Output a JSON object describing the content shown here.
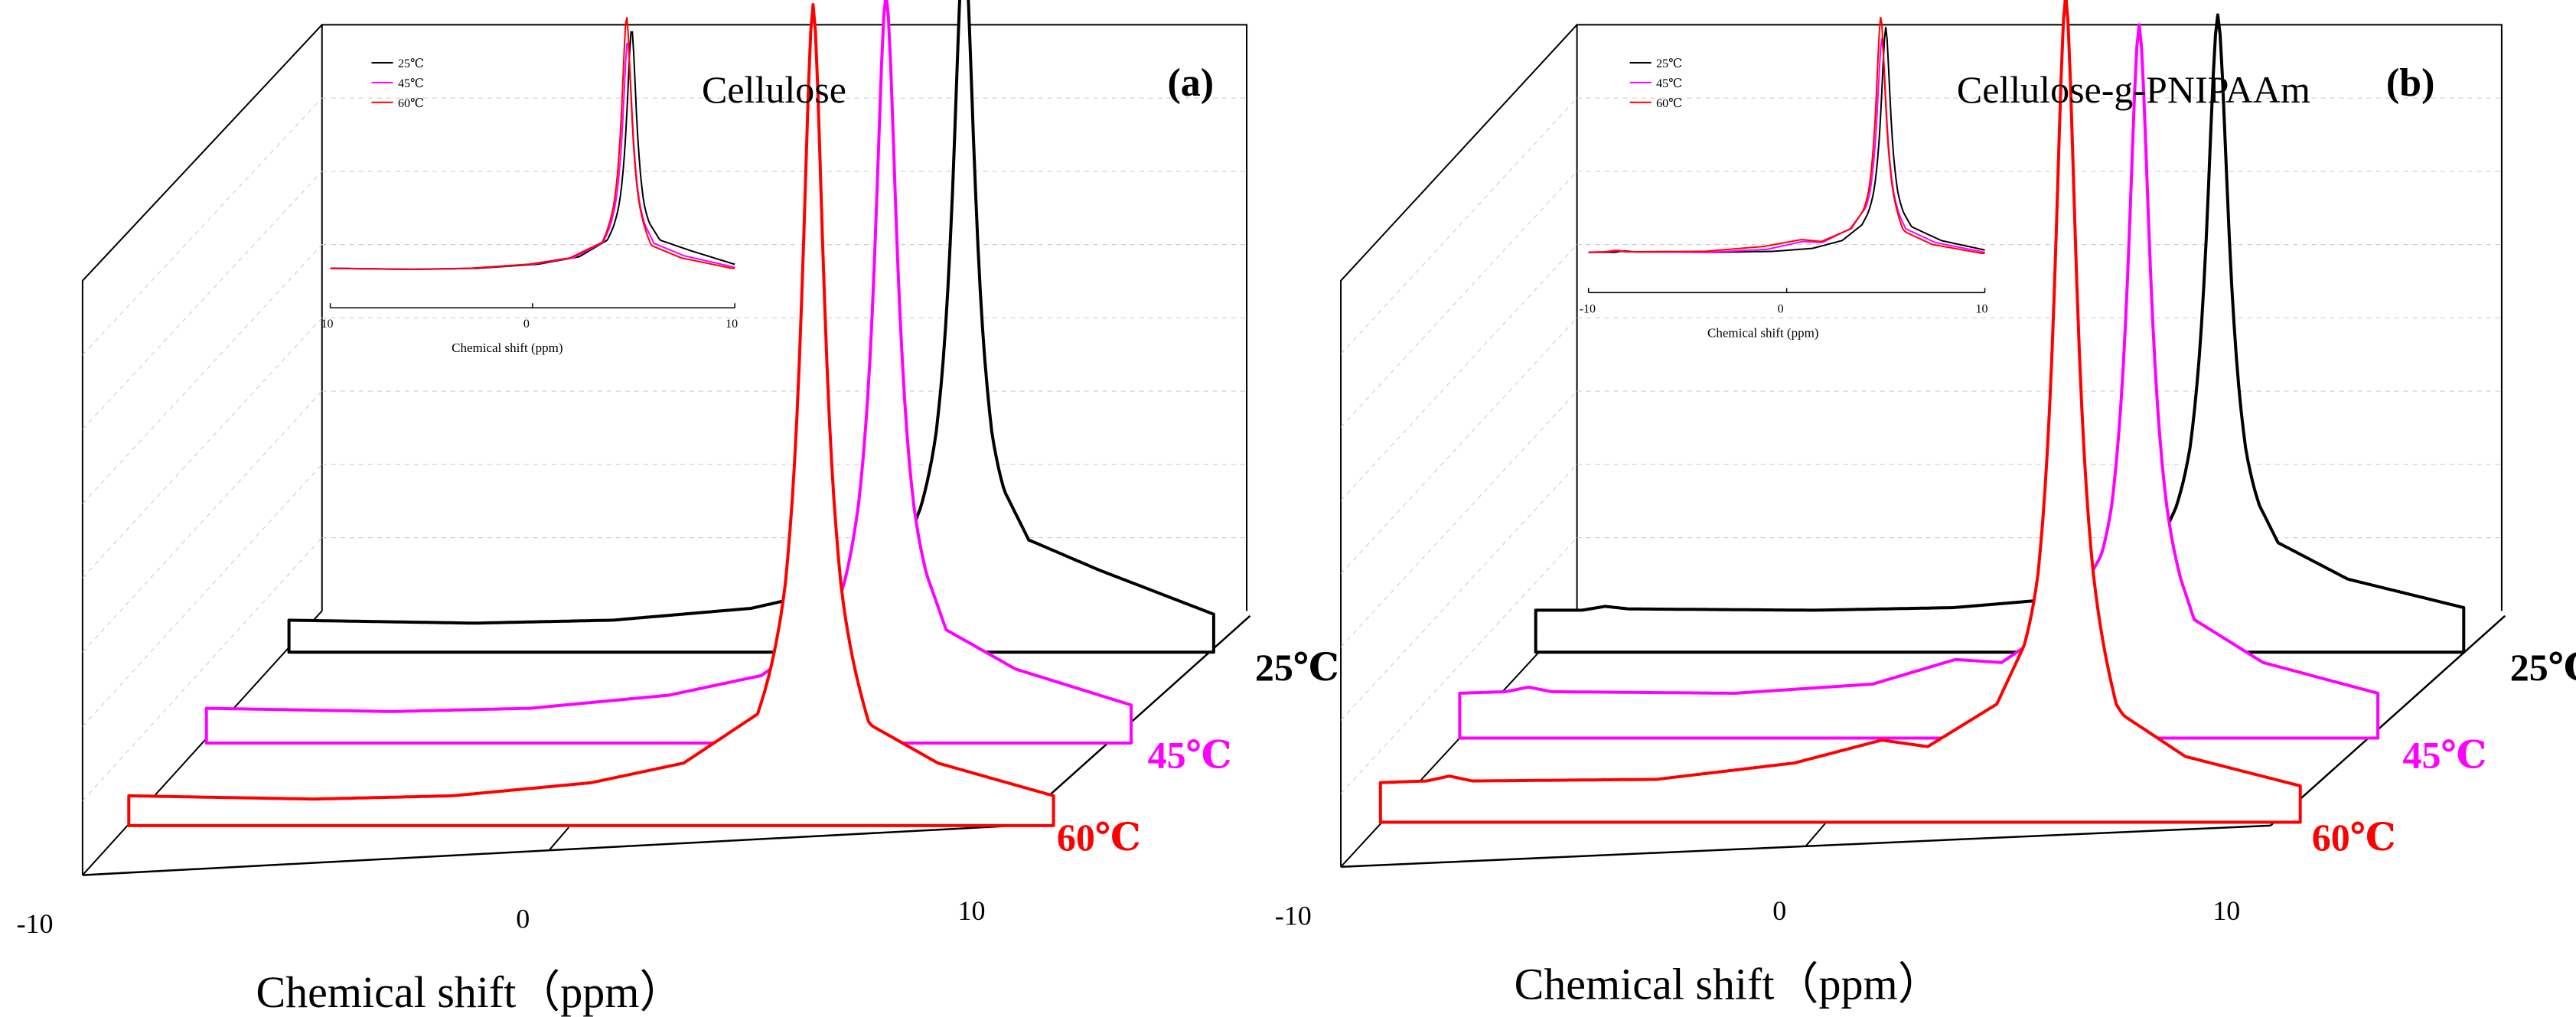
{
  "figure": {
    "description_note": "",
    "colors": {
      "axis": "#000000",
      "grid": "#c8c8c8",
      "black": "#000000",
      "magenta": "#ff00ff",
      "red": "#ff0000"
    }
  },
  "chart_data": [
    {
      "type": "line",
      "panel_label": "(a)",
      "title": "Cellulose",
      "xlabel": "Chemical shift（ppm）",
      "xlim": [
        -10,
        10
      ],
      "x_tick_labels": [
        "-10",
        "0",
        "10"
      ],
      "series_labels": [
        "25℃",
        "45℃",
        "60℃"
      ],
      "series": [
        {
          "name": "25℃",
          "color": "#000000",
          "peak_ppm": 4.6,
          "peak_height": 1.0,
          "baseline_min_ppm": -4.0,
          "profile": [
            [
              -10,
              0.03
            ],
            [
              -6,
              0.02
            ],
            [
              -3,
              0.03
            ],
            [
              0,
              0.07
            ],
            [
              2,
              0.14
            ],
            [
              3.4,
              0.3
            ],
            [
              4.0,
              0.55
            ],
            [
              4.6,
              1.0
            ],
            [
              5.2,
              0.55
            ],
            [
              6.0,
              0.3
            ],
            [
              7.5,
              0.2
            ],
            [
              10,
              0.05
            ]
          ]
        },
        {
          "name": "45℃",
          "color": "#ff00ff",
          "peak_ppm": 4.7,
          "peak_height": 0.95,
          "baseline_min_ppm": -4.0,
          "profile": [
            [
              -10,
              0.03
            ],
            [
              -6,
              0.02
            ],
            [
              -3,
              0.03
            ],
            [
              0,
              0.07
            ],
            [
              2,
              0.13
            ],
            [
              3.5,
              0.28
            ],
            [
              4.1,
              0.55
            ],
            [
              4.7,
              0.95
            ],
            [
              5.3,
              0.55
            ],
            [
              6.0,
              0.27
            ],
            [
              7.5,
              0.15
            ],
            [
              10,
              0.04
            ]
          ]
        },
        {
          "name": "60℃",
          "color": "#ff0000",
          "peak_ppm": 4.8,
          "peak_height": 1.05,
          "baseline_min_ppm": -3.5,
          "profile": [
            [
              -10,
              0.03
            ],
            [
              -6,
              0.02
            ],
            [
              -3,
              0.03
            ],
            [
              0,
              0.07
            ],
            [
              2,
              0.13
            ],
            [
              3.6,
              0.28
            ],
            [
              4.2,
              0.55
            ],
            [
              4.8,
              1.05
            ],
            [
              5.4,
              0.55
            ],
            [
              6.0,
              0.25
            ],
            [
              7.5,
              0.13
            ],
            [
              10,
              0.03
            ]
          ]
        }
      ],
      "inset": {
        "xlabel": "Chemical shift (ppm)",
        "x_tick_labels": [
          "10",
          "0",
          "10"
        ],
        "legend": [
          "25℃",
          "45℃",
          "60℃"
        ]
      }
    },
    {
      "type": "line",
      "panel_label": "(b)",
      "title": "Cellulose-g-PNIPAAm",
      "xlabel": "Chemical shift（ppm）",
      "xlim": [
        -10,
        10
      ],
      "x_tick_labels": [
        "-10",
        "0",
        "10"
      ],
      "series_labels": [
        "25℃",
        "45℃",
        "60℃"
      ],
      "series": [
        {
          "name": "25℃",
          "color": "#000000",
          "peak_ppm": 4.7,
          "peak_height": 1.0,
          "shoulder_ppm": -8.5,
          "profile": [
            [
              -10,
              0.04
            ],
            [
              -9,
              0.04
            ],
            [
              -8.5,
              0.055
            ],
            [
              -8,
              0.045
            ],
            [
              -4,
              0.04
            ],
            [
              -1,
              0.05
            ],
            [
              1,
              0.08
            ],
            [
              2.5,
              0.16
            ],
            [
              3.5,
              0.32
            ],
            [
              4.1,
              0.55
            ],
            [
              4.7,
              1.0
            ],
            [
              5.3,
              0.55
            ],
            [
              6.0,
              0.3
            ],
            [
              7.5,
              0.16
            ],
            [
              10,
              0.05
            ]
          ]
        },
        {
          "name": "45℃",
          "color": "#ff00ff",
          "peak_ppm": 4.8,
          "peak_height": 0.95,
          "shoulder_ppm": 0.8,
          "profile": [
            [
              -10,
              0.04
            ],
            [
              -9,
              0.045
            ],
            [
              -8.5,
              0.06
            ],
            [
              -8,
              0.045
            ],
            [
              -4,
              0.04
            ],
            [
              -1,
              0.07
            ],
            [
              0.8,
              0.15
            ],
            [
              1.8,
              0.14
            ],
            [
              3.2,
              0.28
            ],
            [
              4.2,
              0.55
            ],
            [
              4.8,
              0.95
            ],
            [
              5.4,
              0.55
            ],
            [
              6.0,
              0.28
            ],
            [
              7.5,
              0.14
            ],
            [
              10,
              0.04
            ]
          ]
        },
        {
          "name": "60℃",
          "color": "#ff0000",
          "peak_ppm": 4.9,
          "peak_height": 1.05,
          "shoulder_ppm": 0.9,
          "profile": [
            [
              -10,
              0.04
            ],
            [
              -9,
              0.045
            ],
            [
              -8.5,
              0.06
            ],
            [
              -8,
              0.045
            ],
            [
              -4,
              0.05
            ],
            [
              -1,
              0.1
            ],
            [
              0.9,
              0.17
            ],
            [
              1.9,
              0.15
            ],
            [
              3.4,
              0.28
            ],
            [
              4.3,
              0.55
            ],
            [
              4.9,
              1.05
            ],
            [
              5.5,
              0.55
            ],
            [
              6.0,
              0.26
            ],
            [
              7.5,
              0.12
            ],
            [
              10,
              0.03
            ]
          ]
        }
      ],
      "inset": {
        "xlabel": "Chemical shift (ppm)",
        "x_tick_labels": [
          "-10",
          "0",
          "10"
        ],
        "legend": [
          "25℃",
          "45℃",
          "60℃"
        ]
      }
    }
  ]
}
